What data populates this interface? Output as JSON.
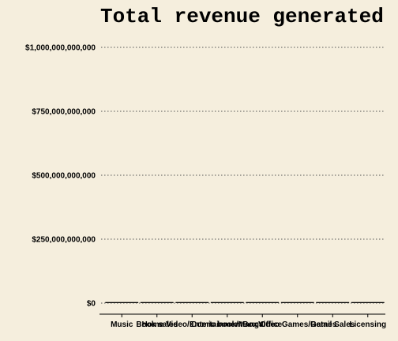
{
  "chart_data": {
    "type": "bar",
    "title": "Total revenue generated",
    "xlabel": "",
    "ylabel": "",
    "categories": [
      "Music",
      "Book sales",
      "Home Video/Entertainment",
      "Comic book/Manga",
      "Box Office",
      "Video Games/Games",
      "Retail Sales",
      "Licensing"
    ],
    "values": [
      0,
      0,
      0,
      0,
      0,
      0,
      0,
      0
    ],
    "ylim": [
      0,
      1000000000000
    ],
    "yticks": [
      0,
      250000000000,
      500000000000,
      750000000000,
      1000000000000
    ],
    "ytick_labels": [
      "$0",
      "$250,000,000,000",
      "$500,000,000,000",
      "$750,000,000,000",
      "$1,000,000,000,000"
    ],
    "grid": true,
    "colors": {
      "background": "#f5eedd",
      "grid": "#555555",
      "bar": "#000000"
    }
  }
}
